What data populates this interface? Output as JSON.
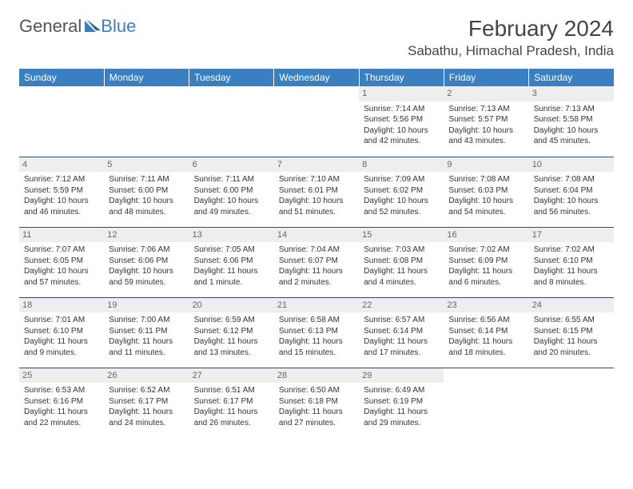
{
  "logo": {
    "part1": "General",
    "part2": "Blue"
  },
  "title": "February 2024",
  "location": "Sabathu, Himachal Pradesh, India",
  "colors": {
    "header_bg": "#3a7fbf",
    "header_text": "#ffffff",
    "daynum_bg": "#eeeeee",
    "border": "#34495e",
    "text": "#333333"
  },
  "day_headers": [
    "Sunday",
    "Monday",
    "Tuesday",
    "Wednesday",
    "Thursday",
    "Friday",
    "Saturday"
  ],
  "weeks": [
    [
      null,
      null,
      null,
      null,
      {
        "n": "1",
        "sr": "Sunrise: 7:14 AM",
        "ss": "Sunset: 5:56 PM",
        "d1": "Daylight: 10 hours",
        "d2": "and 42 minutes."
      },
      {
        "n": "2",
        "sr": "Sunrise: 7:13 AM",
        "ss": "Sunset: 5:57 PM",
        "d1": "Daylight: 10 hours",
        "d2": "and 43 minutes."
      },
      {
        "n": "3",
        "sr": "Sunrise: 7:13 AM",
        "ss": "Sunset: 5:58 PM",
        "d1": "Daylight: 10 hours",
        "d2": "and 45 minutes."
      }
    ],
    [
      {
        "n": "4",
        "sr": "Sunrise: 7:12 AM",
        "ss": "Sunset: 5:59 PM",
        "d1": "Daylight: 10 hours",
        "d2": "and 46 minutes."
      },
      {
        "n": "5",
        "sr": "Sunrise: 7:11 AM",
        "ss": "Sunset: 6:00 PM",
        "d1": "Daylight: 10 hours",
        "d2": "and 48 minutes."
      },
      {
        "n": "6",
        "sr": "Sunrise: 7:11 AM",
        "ss": "Sunset: 6:00 PM",
        "d1": "Daylight: 10 hours",
        "d2": "and 49 minutes."
      },
      {
        "n": "7",
        "sr": "Sunrise: 7:10 AM",
        "ss": "Sunset: 6:01 PM",
        "d1": "Daylight: 10 hours",
        "d2": "and 51 minutes."
      },
      {
        "n": "8",
        "sr": "Sunrise: 7:09 AM",
        "ss": "Sunset: 6:02 PM",
        "d1": "Daylight: 10 hours",
        "d2": "and 52 minutes."
      },
      {
        "n": "9",
        "sr": "Sunrise: 7:08 AM",
        "ss": "Sunset: 6:03 PM",
        "d1": "Daylight: 10 hours",
        "d2": "and 54 minutes."
      },
      {
        "n": "10",
        "sr": "Sunrise: 7:08 AM",
        "ss": "Sunset: 6:04 PM",
        "d1": "Daylight: 10 hours",
        "d2": "and 56 minutes."
      }
    ],
    [
      {
        "n": "11",
        "sr": "Sunrise: 7:07 AM",
        "ss": "Sunset: 6:05 PM",
        "d1": "Daylight: 10 hours",
        "d2": "and 57 minutes."
      },
      {
        "n": "12",
        "sr": "Sunrise: 7:06 AM",
        "ss": "Sunset: 6:06 PM",
        "d1": "Daylight: 10 hours",
        "d2": "and 59 minutes."
      },
      {
        "n": "13",
        "sr": "Sunrise: 7:05 AM",
        "ss": "Sunset: 6:06 PM",
        "d1": "Daylight: 11 hours",
        "d2": "and 1 minute."
      },
      {
        "n": "14",
        "sr": "Sunrise: 7:04 AM",
        "ss": "Sunset: 6:07 PM",
        "d1": "Daylight: 11 hours",
        "d2": "and 2 minutes."
      },
      {
        "n": "15",
        "sr": "Sunrise: 7:03 AM",
        "ss": "Sunset: 6:08 PM",
        "d1": "Daylight: 11 hours",
        "d2": "and 4 minutes."
      },
      {
        "n": "16",
        "sr": "Sunrise: 7:02 AM",
        "ss": "Sunset: 6:09 PM",
        "d1": "Daylight: 11 hours",
        "d2": "and 6 minutes."
      },
      {
        "n": "17",
        "sr": "Sunrise: 7:02 AM",
        "ss": "Sunset: 6:10 PM",
        "d1": "Daylight: 11 hours",
        "d2": "and 8 minutes."
      }
    ],
    [
      {
        "n": "18",
        "sr": "Sunrise: 7:01 AM",
        "ss": "Sunset: 6:10 PM",
        "d1": "Daylight: 11 hours",
        "d2": "and 9 minutes."
      },
      {
        "n": "19",
        "sr": "Sunrise: 7:00 AM",
        "ss": "Sunset: 6:11 PM",
        "d1": "Daylight: 11 hours",
        "d2": "and 11 minutes."
      },
      {
        "n": "20",
        "sr": "Sunrise: 6:59 AM",
        "ss": "Sunset: 6:12 PM",
        "d1": "Daylight: 11 hours",
        "d2": "and 13 minutes."
      },
      {
        "n": "21",
        "sr": "Sunrise: 6:58 AM",
        "ss": "Sunset: 6:13 PM",
        "d1": "Daylight: 11 hours",
        "d2": "and 15 minutes."
      },
      {
        "n": "22",
        "sr": "Sunrise: 6:57 AM",
        "ss": "Sunset: 6:14 PM",
        "d1": "Daylight: 11 hours",
        "d2": "and 17 minutes."
      },
      {
        "n": "23",
        "sr": "Sunrise: 6:56 AM",
        "ss": "Sunset: 6:14 PM",
        "d1": "Daylight: 11 hours",
        "d2": "and 18 minutes."
      },
      {
        "n": "24",
        "sr": "Sunrise: 6:55 AM",
        "ss": "Sunset: 6:15 PM",
        "d1": "Daylight: 11 hours",
        "d2": "and 20 minutes."
      }
    ],
    [
      {
        "n": "25",
        "sr": "Sunrise: 6:53 AM",
        "ss": "Sunset: 6:16 PM",
        "d1": "Daylight: 11 hours",
        "d2": "and 22 minutes."
      },
      {
        "n": "26",
        "sr": "Sunrise: 6:52 AM",
        "ss": "Sunset: 6:17 PM",
        "d1": "Daylight: 11 hours",
        "d2": "and 24 minutes."
      },
      {
        "n": "27",
        "sr": "Sunrise: 6:51 AM",
        "ss": "Sunset: 6:17 PM",
        "d1": "Daylight: 11 hours",
        "d2": "and 26 minutes."
      },
      {
        "n": "28",
        "sr": "Sunrise: 6:50 AM",
        "ss": "Sunset: 6:18 PM",
        "d1": "Daylight: 11 hours",
        "d2": "and 27 minutes."
      },
      {
        "n": "29",
        "sr": "Sunrise: 6:49 AM",
        "ss": "Sunset: 6:19 PM",
        "d1": "Daylight: 11 hours",
        "d2": "and 29 minutes."
      },
      null,
      null
    ]
  ]
}
